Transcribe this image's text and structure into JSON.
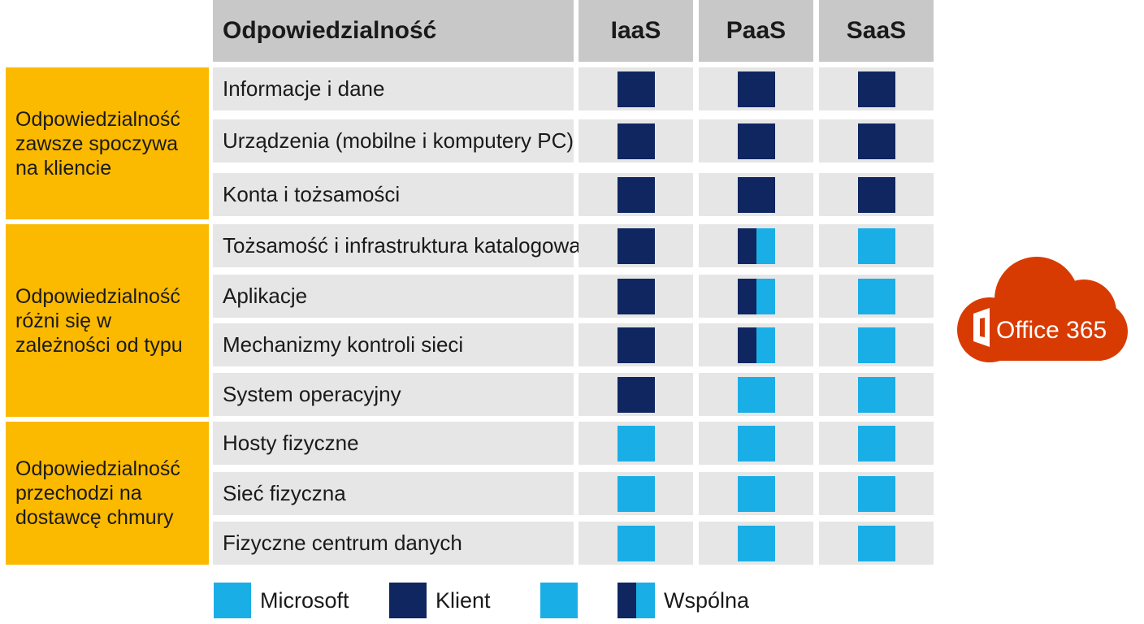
{
  "header": {
    "title": "Odpowiedzialność",
    "columns": [
      "IaaS",
      "PaaS",
      "SaaS"
    ]
  },
  "groups": [
    {
      "label": "Odpowiedzialność zawsze spoczywa na kliencie"
    },
    {
      "label": "Odpowiedzialność różni się w zależności od typu"
    },
    {
      "label": "Odpowiedzialność przechodzi na dostawcę chmury"
    }
  ],
  "rows": [
    {
      "label": "Informacje i dane",
      "values": [
        "client",
        "client",
        "client"
      ]
    },
    {
      "label": "Urządzenia (mobilne i komputery PC)",
      "values": [
        "client",
        "client",
        "client"
      ]
    },
    {
      "label": "Konta i tożsamości",
      "values": [
        "client",
        "client",
        "client"
      ]
    },
    {
      "label": "Tożsamość i infrastruktura katalogowa",
      "values": [
        "client",
        "shared",
        "microsoft"
      ]
    },
    {
      "label": "Aplikacje",
      "values": [
        "client",
        "shared",
        "microsoft"
      ]
    },
    {
      "label": "Mechanizmy kontroli sieci",
      "values": [
        "client",
        "shared",
        "microsoft"
      ]
    },
    {
      "label": "System operacyjny",
      "values": [
        "client",
        "microsoft",
        "microsoft"
      ]
    },
    {
      "label": "Hosty fizyczne",
      "values": [
        "microsoft",
        "microsoft",
        "microsoft"
      ]
    },
    {
      "label": "Sieć fizyczna",
      "values": [
        "microsoft",
        "microsoft",
        "microsoft"
      ]
    },
    {
      "label": "Fizyczne centrum danych",
      "values": [
        "microsoft",
        "microsoft",
        "microsoft"
      ]
    }
  ],
  "legend": {
    "microsoft": "Microsoft",
    "client": "Klient",
    "shared": "Wspólna"
  },
  "logo": {
    "text": "Office 365"
  },
  "colors": {
    "client": "#0f2660",
    "microsoft": "#1aaee6",
    "group": "#fbb900",
    "header": "#c8c8c8",
    "cell": "#e6e6e6",
    "office": "#d83b01"
  }
}
